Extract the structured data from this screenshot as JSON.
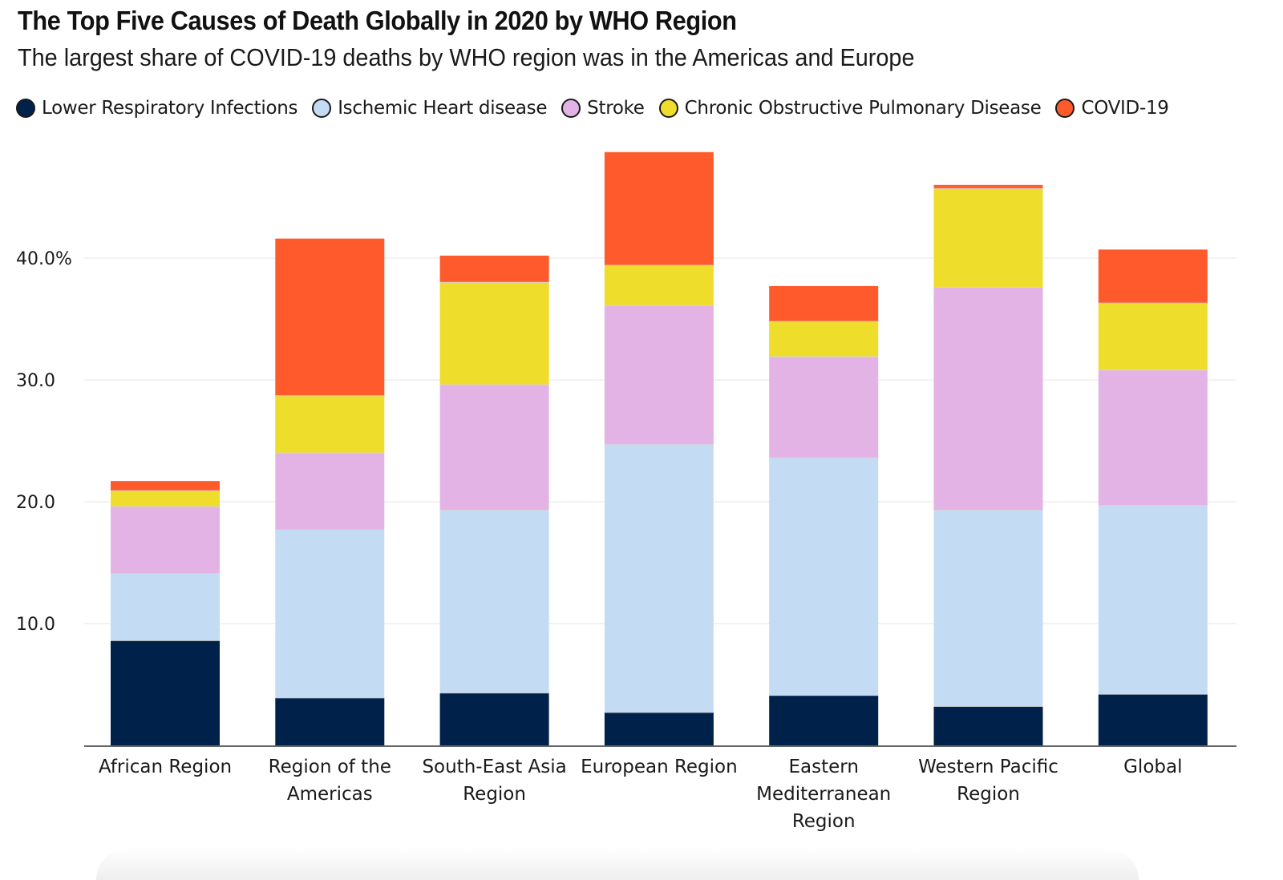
{
  "title": "The Top Five Causes of Death Globally in 2020 by WHO Region",
  "subtitle": "The largest share of COVID-19 deaths by WHO region was in the Americas and Europe",
  "colors": {
    "lower_respiratory": "#00214a",
    "ischemic_heart": "#c3dcf4",
    "stroke": "#e3b3e6",
    "copd": "#eedd2a",
    "covid": "#ff5a2b",
    "axis": "#666666",
    "grid": "#eeeeee",
    "text": "#1a1a1a"
  },
  "chart_data": {
    "type": "bar",
    "stacked": true,
    "categories": [
      "African Region",
      "Region of the Americas",
      "South-East Asia Region",
      "European Region",
      "Eastern Mediterranean Region",
      "Western Pacific Region",
      "Global"
    ],
    "category_lines": [
      [
        "African Region"
      ],
      [
        "Region of the",
        "Americas"
      ],
      [
        "South-East Asia",
        "Region"
      ],
      [
        "European Region"
      ],
      [
        "Eastern",
        "Mediterranean",
        "Region"
      ],
      [
        "Western Pacific",
        "Region"
      ],
      [
        "Global"
      ]
    ],
    "series": [
      {
        "name": "Lower Respiratory Infections",
        "color_key": "lower_respiratory",
        "values": [
          8.6,
          3.9,
          4.3,
          2.7,
          4.1,
          3.2,
          4.2
        ]
      },
      {
        "name": "Ischemic Heart disease",
        "color_key": "ischemic_heart",
        "values": [
          5.5,
          13.8,
          15.0,
          22.0,
          19.5,
          16.1,
          15.5
        ]
      },
      {
        "name": "Stroke",
        "color_key": "stroke",
        "values": [
          5.5,
          6.3,
          10.3,
          11.4,
          8.3,
          18.3,
          11.1
        ]
      },
      {
        "name": "Chronic Obstructive Pulmonary Disease",
        "color_key": "copd",
        "values": [
          1.3,
          4.7,
          8.4,
          3.3,
          2.9,
          8.1,
          5.5
        ]
      },
      {
        "name": "COVID-19",
        "color_key": "covid",
        "values": [
          0.8,
          12.9,
          2.2,
          9.3,
          2.9,
          0.3,
          4.4
        ]
      }
    ],
    "y_ticks": [
      {
        "value": 10,
        "label": "10.0"
      },
      {
        "value": 20,
        "label": "20.0"
      },
      {
        "value": 30,
        "label": "30.0"
      },
      {
        "value": 40,
        "label": "40.0%"
      }
    ],
    "ylim": [
      0,
      48
    ],
    "grid": true,
    "legend_position": "top-left",
    "xlabel": "",
    "ylabel": ""
  }
}
